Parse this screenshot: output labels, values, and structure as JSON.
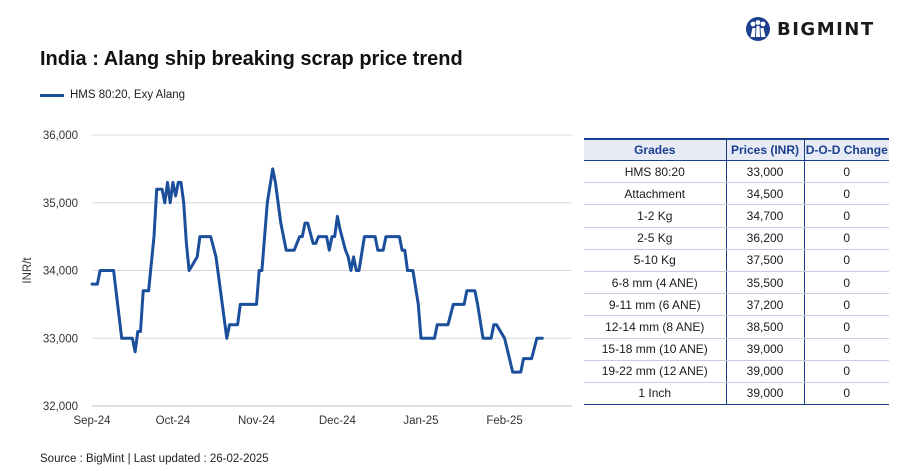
{
  "brand": {
    "name": "BIGMINT",
    "color": "#1b3f8f"
  },
  "chart_data": {
    "type": "line",
    "title": "India : Alang ship breaking scrap price trend",
    "ylabel": "INR/t",
    "xlabel": "",
    "ylim": [
      32000,
      36000
    ],
    "yticks": [
      32000,
      33000,
      34000,
      35000,
      36000
    ],
    "ytick_labels": [
      "32,000",
      "33,000",
      "34,000",
      "35,000",
      "36,000"
    ],
    "xlim": [
      "2024-09-01",
      "2025-02-26"
    ],
    "xticks": [
      "2024-09-01",
      "2024-10-01",
      "2024-11-01",
      "2024-12-01",
      "2025-01-01",
      "2025-02-01"
    ],
    "xtick_labels": [
      "Sep-24",
      "Oct-24",
      "Nov-24",
      "Dec-24",
      "Jan-25",
      "Feb-25"
    ],
    "grid": "horizontal",
    "legend_position": "top-left",
    "series": [
      {
        "name": "HMS 80:20, Exy Alang",
        "color": "#1b4f9c",
        "points": [
          [
            "2024-09-01",
            33800
          ],
          [
            "2024-09-03",
            33800
          ],
          [
            "2024-09-04",
            34000
          ],
          [
            "2024-09-09",
            34000
          ],
          [
            "2024-09-12",
            33000
          ],
          [
            "2024-09-16",
            33000
          ],
          [
            "2024-09-17",
            32800
          ],
          [
            "2024-09-18",
            33100
          ],
          [
            "2024-09-19",
            33100
          ],
          [
            "2024-09-20",
            33700
          ],
          [
            "2024-09-22",
            33700
          ],
          [
            "2024-09-24",
            34500
          ],
          [
            "2024-09-25",
            35200
          ],
          [
            "2024-09-27",
            35200
          ],
          [
            "2024-09-28",
            35000
          ],
          [
            "2024-09-29",
            35300
          ],
          [
            "2024-09-30",
            35000
          ],
          [
            "2024-10-01",
            35300
          ],
          [
            "2024-10-02",
            35100
          ],
          [
            "2024-10-03",
            35300
          ],
          [
            "2024-10-04",
            35300
          ],
          [
            "2024-10-05",
            35000
          ],
          [
            "2024-10-06",
            34400
          ],
          [
            "2024-10-07",
            34000
          ],
          [
            "2024-10-10",
            34200
          ],
          [
            "2024-10-11",
            34500
          ],
          [
            "2024-10-15",
            34500
          ],
          [
            "2024-10-17",
            34200
          ],
          [
            "2024-10-19",
            33600
          ],
          [
            "2024-10-21",
            33000
          ],
          [
            "2024-10-22",
            33200
          ],
          [
            "2024-10-25",
            33200
          ],
          [
            "2024-10-26",
            33500
          ],
          [
            "2024-10-28",
            33500
          ],
          [
            "2024-10-31",
            33500
          ],
          [
            "2024-11-01",
            33500
          ],
          [
            "2024-11-02",
            34000
          ],
          [
            "2024-11-03",
            34000
          ],
          [
            "2024-11-05",
            35000
          ],
          [
            "2024-11-07",
            35500
          ],
          [
            "2024-11-08",
            35300
          ],
          [
            "2024-11-10",
            34700
          ],
          [
            "2024-11-11",
            34500
          ],
          [
            "2024-11-12",
            34300
          ],
          [
            "2024-11-15",
            34300
          ],
          [
            "2024-11-17",
            34500
          ],
          [
            "2024-11-18",
            34500
          ],
          [
            "2024-11-19",
            34700
          ],
          [
            "2024-11-20",
            34700
          ],
          [
            "2024-11-22",
            34400
          ],
          [
            "2024-11-23",
            34400
          ],
          [
            "2024-11-24",
            34500
          ],
          [
            "2024-11-27",
            34500
          ],
          [
            "2024-11-28",
            34300
          ],
          [
            "2024-11-29",
            34500
          ],
          [
            "2024-11-30",
            34500
          ],
          [
            "2024-12-01",
            34800
          ],
          [
            "2024-12-02",
            34600
          ],
          [
            "2024-12-04",
            34300
          ],
          [
            "2024-12-05",
            34200
          ],
          [
            "2024-12-06",
            34000
          ],
          [
            "2024-12-07",
            34200
          ],
          [
            "2024-12-08",
            34000
          ],
          [
            "2024-12-09",
            34000
          ],
          [
            "2024-12-11",
            34500
          ],
          [
            "2024-12-15",
            34500
          ],
          [
            "2024-12-16",
            34300
          ],
          [
            "2024-12-18",
            34300
          ],
          [
            "2024-12-19",
            34500
          ],
          [
            "2024-12-24",
            34500
          ],
          [
            "2024-12-25",
            34300
          ],
          [
            "2024-12-26",
            34300
          ],
          [
            "2024-12-27",
            34000
          ],
          [
            "2024-12-29",
            34000
          ],
          [
            "2024-12-31",
            33500
          ],
          [
            "2025-01-01",
            33000
          ],
          [
            "2025-01-06",
            33000
          ],
          [
            "2025-01-07",
            33200
          ],
          [
            "2025-01-11",
            33200
          ],
          [
            "2025-01-13",
            33500
          ],
          [
            "2025-01-17",
            33500
          ],
          [
            "2025-01-18",
            33700
          ],
          [
            "2025-01-21",
            33700
          ],
          [
            "2025-01-22",
            33500
          ],
          [
            "2025-01-24",
            33000
          ],
          [
            "2025-01-27",
            33000
          ],
          [
            "2025-01-28",
            33200
          ],
          [
            "2025-01-29",
            33200
          ],
          [
            "2025-02-01",
            33000
          ],
          [
            "2025-02-04",
            32500
          ],
          [
            "2025-02-07",
            32500
          ],
          [
            "2025-02-08",
            32700
          ],
          [
            "2025-02-11",
            32700
          ],
          [
            "2025-02-13",
            33000
          ],
          [
            "2025-02-15",
            33000
          ]
        ]
      }
    ]
  },
  "grades_table": {
    "headers": [
      "Grades",
      "Prices (INR)",
      "D-O-D Change"
    ],
    "rows": [
      [
        "HMS 80:20",
        "33,000",
        "0"
      ],
      [
        "Attachment",
        "34,500",
        "0"
      ],
      [
        "1-2 Kg",
        "34,700",
        "0"
      ],
      [
        "2-5 Kg",
        "36,200",
        "0"
      ],
      [
        "5-10 Kg",
        "37,500",
        "0"
      ],
      [
        "6-8 mm (4 ANE)",
        "35,500",
        "0"
      ],
      [
        "9-11 mm (6 ANE)",
        "37,200",
        "0"
      ],
      [
        "12-14 mm (8 ANE)",
        "38,500",
        "0"
      ],
      [
        "15-18 mm (10 ANE)",
        "39,000",
        "0"
      ],
      [
        "19-22 mm (12 ANE)",
        "39,000",
        "0"
      ],
      [
        "1 Inch",
        "39,000",
        "0"
      ]
    ]
  },
  "footer": {
    "source": "Source : BigMint | Last updated : 26-02-2025"
  }
}
